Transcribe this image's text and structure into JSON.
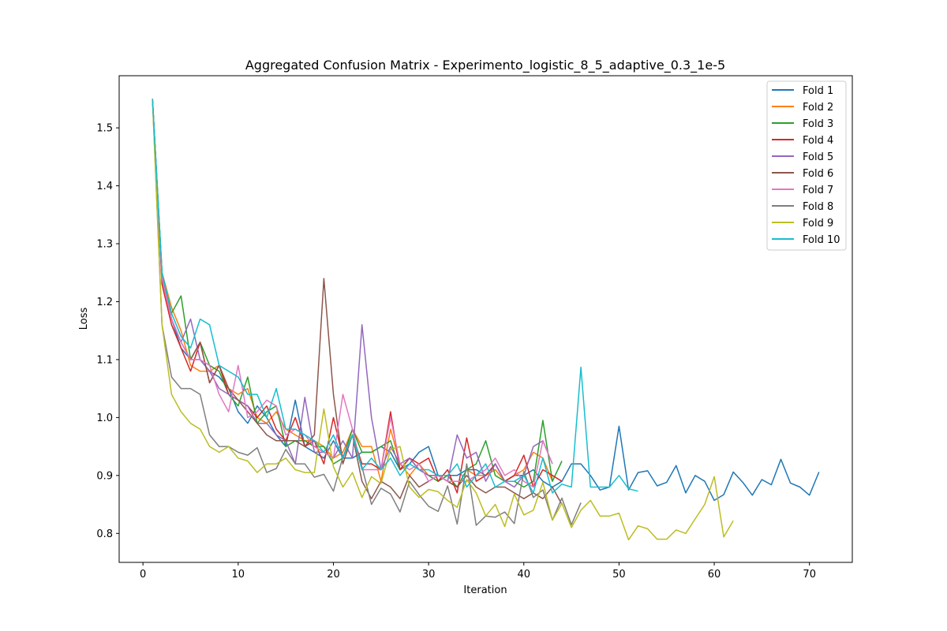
{
  "chart_data": {
    "type": "line",
    "title": "Aggregated Confusion Matrix - Experimento_logistic_8_5_adaptive_0.3_1e-5",
    "xlabel": "Iteration",
    "ylabel": "Loss",
    "xlim": [
      -2.5,
      74.5
    ],
    "ylim": [
      0.75,
      1.59
    ],
    "xticks": [
      0,
      10,
      20,
      30,
      40,
      50,
      60,
      70
    ],
    "yticks": [
      0.8,
      0.9,
      1.0,
      1.1,
      1.2,
      1.3,
      1.4,
      1.5
    ],
    "xtick_labels": [
      "0",
      "10",
      "20",
      "30",
      "40",
      "50",
      "60",
      "70"
    ],
    "ytick_labels": [
      "0.8",
      "0.9",
      "1.0",
      "1.1",
      "1.2",
      "1.3",
      "1.4",
      "1.5"
    ],
    "grid": false,
    "legend_position": "upper right",
    "series": [
      {
        "name": "Fold 1",
        "color": "#1f77b4",
        "x_start": 1,
        "values": [
          1.55,
          1.25,
          1.17,
          1.12,
          1.1,
          1.1,
          1.08,
          1.07,
          1.05,
          1.01,
          0.99,
          1.02,
          1.0,
          0.97,
          0.95,
          1.03,
          0.95,
          0.94,
          0.93,
          0.96,
          0.93,
          0.93,
          0.94,
          0.94,
          0.95,
          0.94,
          0.91,
          0.92,
          0.94,
          0.95,
          0.9,
          0.9,
          0.9,
          0.91,
          0.91,
          0.9,
          0.92,
          0.89,
          0.9,
          0.9,
          0.91,
          0.89,
          0.88,
          0.89,
          0.92,
          0.92,
          0.9,
          0.875,
          0.88,
          0.985,
          0.875,
          0.905,
          0.908,
          0.882,
          0.888,
          0.917,
          0.87,
          0.9,
          0.89,
          0.857,
          0.867,
          0.906,
          0.888,
          0.866,
          0.893,
          0.884,
          0.928,
          0.887,
          0.88,
          0.866,
          0.906
        ]
      },
      {
        "name": "Fold 2",
        "color": "#ff7f0e",
        "x_start": 1,
        "values": [
          1.55,
          1.25,
          1.19,
          1.15,
          1.09,
          1.08,
          1.08,
          1.09,
          1.05,
          1.04,
          1.05,
          1.0,
          0.99,
          1.01,
          0.98,
          0.97,
          0.96,
          0.96,
          0.95,
          0.93,
          0.94,
          0.98,
          0.95,
          0.95,
          0.89,
          0.98,
          0.92,
          0.9,
          0.92,
          0.9,
          0.9,
          0.89,
          0.88,
          0.91,
          0.9,
          0.9,
          0.91,
          0.89,
          0.9,
          0.91,
          0.94,
          0.93,
          0.89
        ]
      },
      {
        "name": "Fold 3",
        "color": "#2ca02c",
        "x_start": 1,
        "values": [
          1.55,
          1.25,
          1.18,
          1.21,
          1.1,
          1.13,
          1.09,
          1.08,
          1.04,
          1.02,
          1.07,
          0.99,
          1.01,
          1.02,
          0.95,
          0.96,
          0.96,
          0.95,
          0.95,
          0.92,
          0.93,
          0.98,
          0.94,
          0.94,
          0.95,
          0.96,
          0.91,
          0.93,
          0.91,
          0.9,
          0.89,
          0.9,
          0.88,
          0.91,
          0.92,
          0.96,
          0.9,
          0.89,
          0.89,
          0.88,
          0.89,
          0.995,
          0.89,
          0.925
        ]
      },
      {
        "name": "Fold 4",
        "color": "#d62728",
        "x_start": 1,
        "values": [
          1.55,
          1.23,
          1.16,
          1.12,
          1.08,
          1.13,
          1.06,
          1.09,
          1.04,
          1.03,
          1.02,
          1.0,
          1.02,
          0.98,
          0.96,
          1.0,
          0.95,
          0.96,
          0.92,
          1.0,
          0.93,
          0.97,
          0.92,
          0.92,
          0.91,
          1.01,
          0.91,
          0.93,
          0.92,
          0.93,
          0.89,
          0.91,
          0.87,
          0.965,
          0.89,
          0.9,
          0.92,
          0.89,
          0.9,
          0.935,
          0.88,
          0.91,
          0.9,
          0.89
        ]
      },
      {
        "name": "Fold 5",
        "color": "#9467bd",
        "x_start": 1,
        "values": [
          1.55,
          1.24,
          1.17,
          1.13,
          1.17,
          1.1,
          1.08,
          1.05,
          1.04,
          1.03,
          1.02,
          0.99,
          0.99,
          0.97,
          0.96,
          0.92,
          1.035,
          0.94,
          0.94,
          0.93,
          0.96,
          0.93,
          1.16,
          1.0,
          0.91,
          0.95,
          0.92,
          0.93,
          0.91,
          0.9,
          0.9,
          0.89,
          0.97,
          0.93,
          0.94,
          0.89,
          0.92,
          0.89,
          0.88,
          0.9,
          0.95,
          0.96,
          0.92
        ]
      },
      {
        "name": "Fold 6",
        "color": "#8c564b",
        "x_start": 1,
        "values": [
          1.55,
          1.24,
          1.17,
          1.13,
          1.1,
          1.13,
          1.06,
          1.09,
          1.05,
          1.03,
          1.01,
          0.99,
          0.97,
          0.96,
          0.96,
          0.96,
          0.95,
          0.97,
          1.24,
          1.04,
          0.92,
          0.97,
          0.89,
          0.86,
          0.89,
          0.88,
          0.86,
          0.9,
          0.88,
          0.89,
          0.9,
          0.89,
          0.88,
          0.9,
          0.88,
          0.87,
          0.88,
          0.88,
          0.87,
          0.86,
          0.87,
          0.86,
          0.88,
          0.85
        ]
      },
      {
        "name": "Fold 7",
        "color": "#e377c2",
        "x_start": 1,
        "values": [
          1.55,
          1.24,
          1.17,
          1.13,
          1.1,
          1.1,
          1.09,
          1.04,
          1.01,
          1.09,
          1.0,
          1.01,
          1.03,
          1.02,
          0.97,
          0.98,
          0.97,
          0.95,
          0.94,
          0.93,
          1.04,
          0.98,
          0.91,
          0.91,
          0.91,
          1.0,
          0.92,
          0.91,
          0.92,
          0.89,
          0.9,
          0.89,
          0.89,
          0.89,
          0.9,
          0.91,
          0.93,
          0.9,
          0.91,
          0.89,
          0.88,
          0.96,
          0.92
        ]
      },
      {
        "name": "Fold 8",
        "color": "#7f7f7f",
        "x_start": 1,
        "values": [
          1.55,
          1.16,
          1.07,
          1.05,
          1.05,
          1.04,
          0.97,
          0.95,
          0.95,
          0.94,
          0.935,
          0.948,
          0.905,
          0.912,
          0.945,
          0.92,
          0.92,
          0.897,
          0.902,
          0.873,
          0.932,
          0.97,
          0.915,
          0.85,
          0.878,
          0.868,
          0.837,
          0.89,
          0.867,
          0.847,
          0.838,
          0.882,
          0.816,
          0.92,
          0.814,
          0.83,
          0.828,
          0.837,
          0.817,
          0.907,
          0.862,
          0.875,
          0.823,
          0.861,
          0.815,
          0.853
        ]
      },
      {
        "name": "Fold 9",
        "color": "#bcbd22",
        "x_start": 1,
        "values": [
          1.55,
          1.16,
          1.04,
          1.01,
          0.99,
          0.98,
          0.95,
          0.94,
          0.95,
          0.93,
          0.925,
          0.905,
          0.92,
          0.92,
          0.93,
          0.91,
          0.905,
          0.905,
          1.015,
          0.915,
          0.88,
          0.905,
          0.862,
          0.898,
          0.886,
          0.945,
          0.95,
          0.88,
          0.862,
          0.876,
          0.872,
          0.857,
          0.845,
          0.893,
          0.87,
          0.83,
          0.85,
          0.812,
          0.868,
          0.832,
          0.84,
          0.888,
          0.823,
          0.852,
          0.81,
          0.84,
          0.857,
          0.83,
          0.83,
          0.835,
          0.789,
          0.813,
          0.808,
          0.79,
          0.79,
          0.806,
          0.8,
          0.825,
          0.85,
          0.898,
          0.794,
          0.822
        ]
      },
      {
        "name": "Fold 10",
        "color": "#17becf",
        "x_start": 1,
        "values": [
          1.55,
          1.25,
          1.18,
          1.14,
          1.12,
          1.17,
          1.16,
          1.09,
          1.08,
          1.07,
          1.04,
          1.04,
          1.0,
          1.05,
          0.98,
          0.98,
          0.97,
          0.96,
          0.94,
          0.97,
          0.93,
          0.97,
          0.91,
          0.93,
          0.91,
          0.93,
          0.9,
          0.92,
          0.91,
          0.91,
          0.9,
          0.9,
          0.92,
          0.88,
          0.9,
          0.92,
          0.88,
          0.89,
          0.89,
          0.9,
          0.87,
          0.93,
          0.87,
          0.885,
          0.88,
          1.087,
          0.88,
          0.88,
          0.88,
          0.9,
          0.877,
          0.873
        ]
      }
    ]
  }
}
